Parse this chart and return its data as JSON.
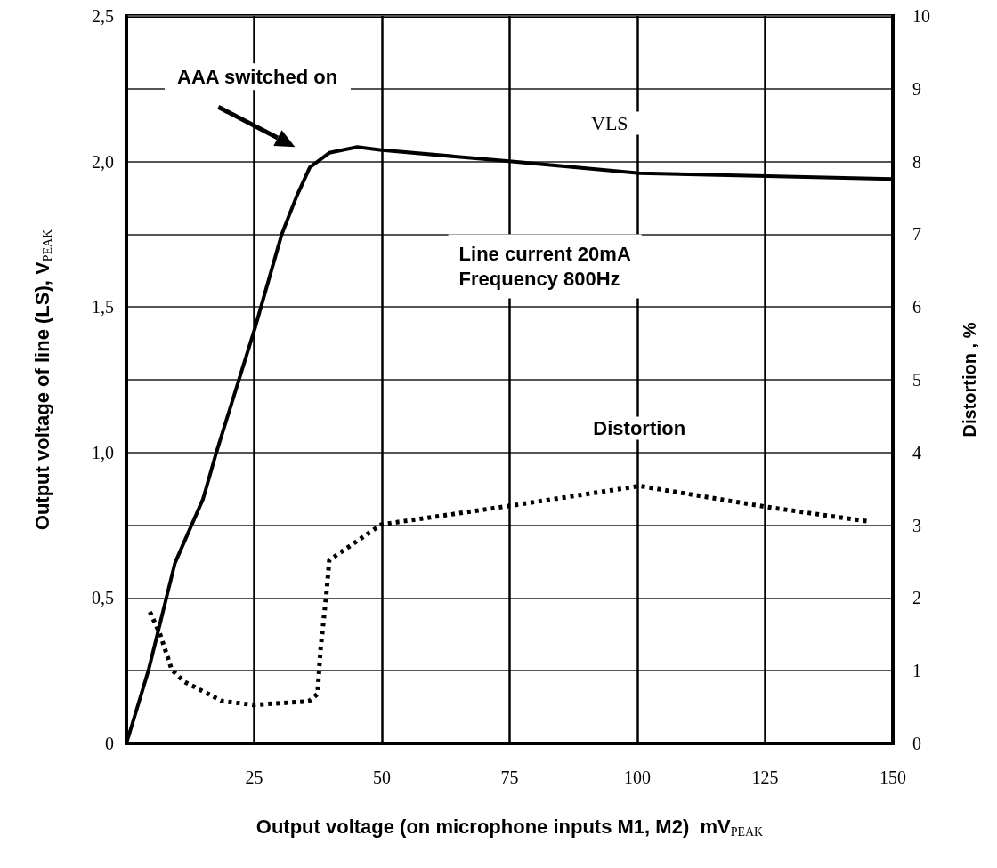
{
  "chart_data": {
    "type": "line",
    "xlabel": "Output voltage (on microphone inputs M1, M2)  mV$_{PEAK}$",
    "ylabel": "Output voltage of line (LS), V$_{PEAK}$",
    "y2label": "Distortion , %",
    "xlim": [
      0,
      150
    ],
    "xticks": [
      25,
      50,
      75,
      100,
      125,
      150
    ],
    "ylim": [
      0,
      2.5
    ],
    "yticks": [
      0,
      {
        "value": 0.5,
        "label": "0,5"
      },
      {
        "value": 1,
        "label": "1,0"
      },
      {
        "value": 1.5,
        "label": "1,5"
      },
      {
        "value": 2,
        "label": "2,0"
      },
      {
        "value": 2.5,
        "label": "2,5"
      }
    ],
    "y2lim": [
      0,
      10
    ],
    "y2ticks": [
      0,
      1,
      2,
      3,
      4,
      5,
      6,
      7,
      8,
      9,
      10
    ],
    "grid": true,
    "legend": false,
    "marker": "none",
    "series": [
      {
        "name": "VLS",
        "color": "#000000",
        "line_style": "solid",
        "x": [
          0,
          4.3,
          9.5,
          15.0,
          17.6,
          25.2,
          30.4,
          33.3,
          35.9,
          39.7,
          45.2,
          49.6,
          75.4,
          100.4,
          125.4,
          149.8
        ],
        "values": [
          0,
          0.25,
          0.62,
          0.84,
          1.0,
          1.43,
          1.75,
          1.88,
          1.98,
          2.03,
          2.05,
          2.04,
          2.0,
          1.96,
          1.95,
          1.94
        ]
      },
      {
        "name": "Distortion",
        "color": "#000000",
        "line_style": "dotted",
        "axis": "y2",
        "x": [
          4.6,
          6.6,
          8.9,
          11.3,
          18.8,
          24.9,
          35.7,
          37.4,
          38.0,
          39.1,
          39.7,
          49.9,
          75.4,
          100.4,
          125.4,
          145.4
        ],
        "values": [
          1.81,
          1.5,
          1.01,
          0.85,
          0.58,
          0.53,
          0.58,
          0.68,
          1.3,
          2.03,
          2.52,
          3.01,
          3.27,
          3.54,
          3.25,
          3.05
        ]
      }
    ],
    "annotations": [
      "AAA switched on",
      "Line current 20mA\nFrequency 800Hz"
    ]
  }
}
